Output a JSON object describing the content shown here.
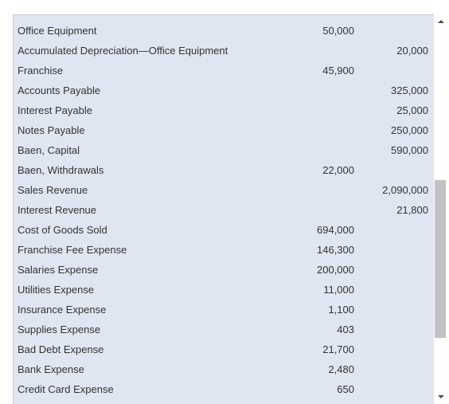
{
  "accounts": [
    {
      "name": "Office Equipment",
      "debit": "50,000",
      "credit": ""
    },
    {
      "name": "Accumulated Depreciation—Office Equipment",
      "debit": "",
      "credit": "20,000"
    },
    {
      "name": "Franchise",
      "debit": "45,900",
      "credit": ""
    },
    {
      "name": "Accounts Payable",
      "debit": "",
      "credit": "325,000"
    },
    {
      "name": "Interest Payable",
      "debit": "",
      "credit": "25,000"
    },
    {
      "name": "Notes Payable",
      "debit": "",
      "credit": "250,000"
    },
    {
      "name": "Baen, Capital",
      "debit": "",
      "credit": "590,000"
    },
    {
      "name": "Baen, Withdrawals",
      "debit": "22,000",
      "credit": ""
    },
    {
      "name": "Sales Revenue",
      "debit": "",
      "credit": "2,090,000"
    },
    {
      "name": "Interest Revenue",
      "debit": "",
      "credit": "21,800"
    },
    {
      "name": "Cost of Goods Sold",
      "debit": "694,000",
      "credit": ""
    },
    {
      "name": "Franchise Fee Expense",
      "debit": "146,300",
      "credit": ""
    },
    {
      "name": "Salaries Expense",
      "debit": "200,000",
      "credit": ""
    },
    {
      "name": "Utilities Expense",
      "debit": "11,000",
      "credit": ""
    },
    {
      "name": "Insurance Expense",
      "debit": "1,100",
      "credit": ""
    },
    {
      "name": "Supplies Expense",
      "debit": "403",
      "credit": ""
    },
    {
      "name": "Bad Debt Expense",
      "debit": "21,700",
      "credit": ""
    },
    {
      "name": "Bank Expense",
      "debit": "2,480",
      "credit": ""
    },
    {
      "name": "Credit Card Expense",
      "debit": "650",
      "credit": ""
    }
  ],
  "scrollbar": {
    "up_icon": "chevron-up-icon",
    "down_icon": "chevron-down-icon",
    "position_fraction": 0.47
  }
}
